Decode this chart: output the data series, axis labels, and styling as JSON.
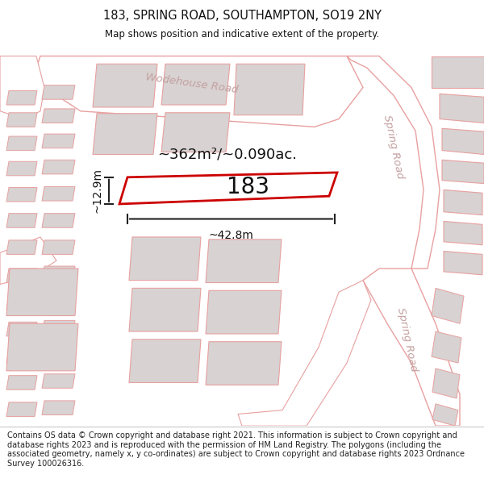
{
  "title_line1": "183, SPRING ROAD, SOUTHAMPTON, SO19 2NY",
  "title_line2": "Map shows position and indicative extent of the property.",
  "footer_text": "Contains OS data © Crown copyright and database right 2021. This information is subject to Crown copyright and database rights 2023 and is reproduced with the permission of HM Land Registry. The polygons (including the associated geometry, namely x, y co-ordinates) are subject to Crown copyright and database rights 2023 Ordnance Survey 100026316.",
  "background_color": "#ffffff",
  "map_bg_color": "#f7f2f2",
  "road_fill_color": "#ffffff",
  "road_stroke_color": "#e8a0a0",
  "building_fill_color": "#d8d2d2",
  "building_stroke_color": "#e8a0a0",
  "highlight_color": "#cc0000",
  "highlight_fill": "#ffffff",
  "dim_color": "#333333",
  "road_label_color": "#c4a0a0",
  "area_text": "~362m²/~0.090ac.",
  "label_183": "183",
  "label_width": "~42.8m",
  "label_height": "~12.9m",
  "road_label_1": "Wodehouse Road",
  "road_label_2": "Spring Road",
  "road_label_3": "Spring Road"
}
